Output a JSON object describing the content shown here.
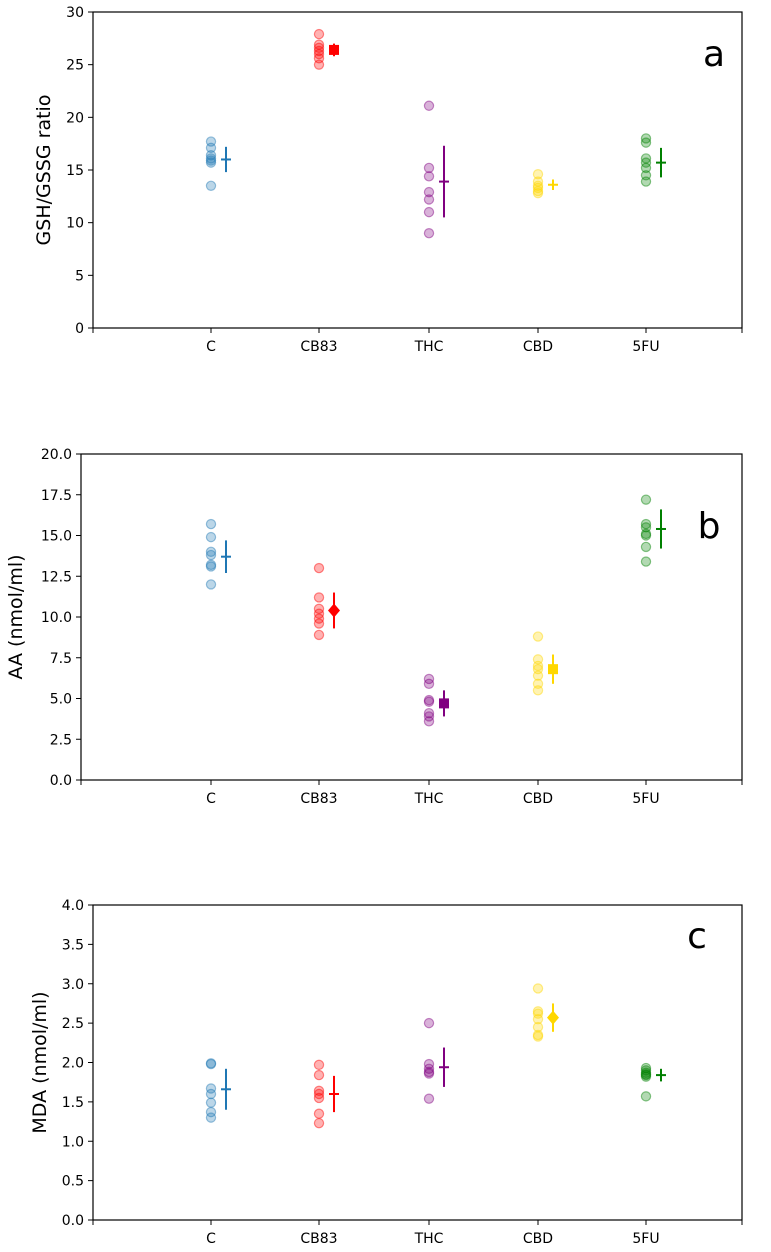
{
  "colors": {
    "C": "#1f77b4",
    "CB83": "#ff0000",
    "THC": "#800080",
    "CBD": "#ffd700",
    "5FU": "#008000"
  },
  "chart_data": [
    {
      "type": "scatter",
      "panel_label": "a",
      "ylabel": "GSH/GSSG ratio",
      "categories": [
        "C",
        "CB83",
        "THC",
        "CBD",
        "5FU"
      ],
      "ylim": [
        0,
        30
      ],
      "yticks": [
        0,
        5,
        10,
        15,
        20,
        25,
        30
      ],
      "ytick_labels": [
        "0",
        "5",
        "10",
        "15",
        "20",
        "25",
        "30"
      ],
      "series": [
        {
          "name": "C",
          "points": [
            17.7,
            17.1,
            16.4,
            16.1,
            15.9,
            15.7,
            13.5
          ],
          "mean": 16.0,
          "err": 1.2,
          "marker": "plus"
        },
        {
          "name": "CB83",
          "points": [
            27.9,
            26.9,
            26.6,
            26.3,
            26.0,
            25.6,
            25.0
          ],
          "mean": 26.4,
          "err": 0.6,
          "marker": "square"
        },
        {
          "name": "THC",
          "points": [
            21.1,
            15.2,
            14.4,
            12.9,
            12.2,
            11.0,
            9.0
          ],
          "mean": 13.9,
          "err": 3.4,
          "marker": "plus"
        },
        {
          "name": "CBD",
          "points": [
            14.6,
            13.9,
            13.5,
            13.3,
            13.0,
            12.8
          ],
          "mean": 13.6,
          "err": 0.5,
          "marker": "plus"
        },
        {
          "name": "5FU",
          "points": [
            18.0,
            17.6,
            16.1,
            15.7,
            15.2,
            14.5,
            13.9
          ],
          "mean": 15.7,
          "err": 1.4,
          "marker": "plus"
        }
      ]
    },
    {
      "type": "scatter",
      "panel_label": "b",
      "ylabel": "AA (nmol/ml)",
      "categories": [
        "C",
        "CB83",
        "THC",
        "CBD",
        "5FU"
      ],
      "ylim": [
        0,
        20
      ],
      "yticks": [
        0,
        2.5,
        5,
        7.5,
        10,
        12.5,
        15,
        17.5,
        20
      ],
      "ytick_labels": [
        "0.0",
        "2.5",
        "5.0",
        "7.5",
        "10.0",
        "12.5",
        "15.0",
        "17.5",
        "20.0"
      ],
      "series": [
        {
          "name": "C",
          "points": [
            15.7,
            14.9,
            14.0,
            13.8,
            13.2,
            13.1,
            12.0
          ],
          "mean": 13.7,
          "err": 1.0,
          "marker": "plus"
        },
        {
          "name": "CB83",
          "points": [
            13.0,
            11.2,
            10.5,
            10.2,
            9.9,
            9.6,
            8.9
          ],
          "mean": 10.4,
          "err": 1.1,
          "marker": "diamond"
        },
        {
          "name": "THC",
          "points": [
            6.2,
            5.9,
            4.9,
            4.8,
            4.1,
            3.9,
            3.6
          ],
          "mean": 4.7,
          "err": 0.8,
          "marker": "square"
        },
        {
          "name": "CBD",
          "points": [
            8.8,
            7.4,
            7.0,
            6.8,
            6.4,
            5.9,
            5.5
          ],
          "mean": 6.8,
          "err": 0.9,
          "marker": "square"
        },
        {
          "name": "5FU",
          "points": [
            17.2,
            15.7,
            15.5,
            15.1,
            15.0,
            14.3,
            13.4
          ],
          "mean": 15.4,
          "err": 1.2,
          "marker": "plus"
        }
      ]
    },
    {
      "type": "scatter",
      "panel_label": "c",
      "ylabel": "MDA (nmol/ml)",
      "categories": [
        "C",
        "CB83",
        "THC",
        "CBD",
        "5FU"
      ],
      "ylim": [
        0,
        4
      ],
      "yticks": [
        0,
        0.5,
        1,
        1.5,
        2,
        2.5,
        3,
        3.5,
        4
      ],
      "ytick_labels": [
        "0.0",
        "0.5",
        "1.0",
        "1.5",
        "2.0",
        "2.5",
        "3.0",
        "3.5",
        "4.0"
      ],
      "series": [
        {
          "name": "C",
          "points": [
            1.99,
            1.98,
            1.67,
            1.6,
            1.49,
            1.37,
            1.3
          ],
          "mean": 1.66,
          "err": 0.26,
          "marker": "plus"
        },
        {
          "name": "CB83",
          "points": [
            1.97,
            1.84,
            1.64,
            1.6,
            1.55,
            1.35,
            1.23
          ],
          "mean": 1.6,
          "err": 0.23,
          "marker": "plus"
        },
        {
          "name": "THC",
          "points": [
            2.5,
            1.98,
            1.92,
            1.88,
            1.86,
            1.54
          ],
          "mean": 1.94,
          "err": 0.25,
          "marker": "plus"
        },
        {
          "name": "CBD",
          "points": [
            2.94,
            2.65,
            2.62,
            2.55,
            2.45,
            2.35,
            2.33
          ],
          "mean": 2.57,
          "err": 0.18,
          "marker": "diamond"
        },
        {
          "name": "5FU",
          "points": [
            1.93,
            1.9,
            1.87,
            1.85,
            1.84,
            1.82,
            1.57
          ],
          "mean": 1.84,
          "err": 0.08,
          "marker": "plus"
        }
      ]
    }
  ]
}
